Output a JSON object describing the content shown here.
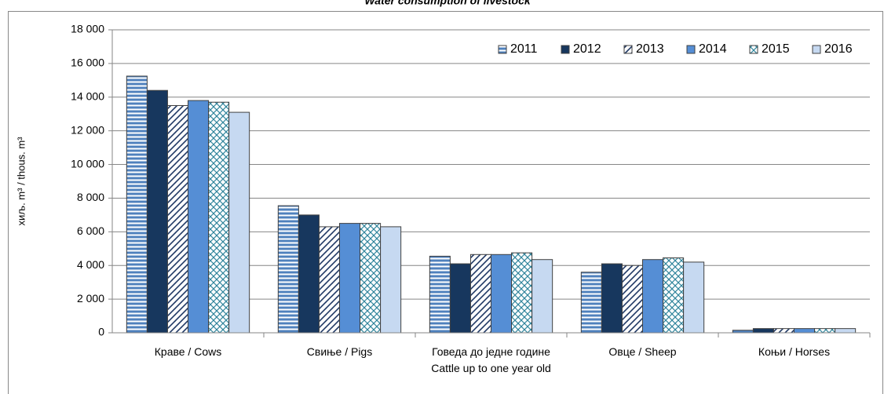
{
  "chart_data": {
    "type": "bar",
    "title": "Water consumption of livestock",
    "y_label": "хиљ. m³ / thous. m³",
    "categories": [
      "Краве / Cows",
      "Свиње / Pigs",
      "Говеда до једне године\nCattle up to one year old",
      "Овце / Sheep",
      "Коњи / Horses"
    ],
    "series": [
      {
        "name": "2011",
        "color": "#4f81bd",
        "pattern": "horizontal",
        "values": [
          15250,
          7550,
          4550,
          3600,
          150
        ]
      },
      {
        "name": "2012",
        "color": "#17375e",
        "pattern": "solid",
        "values": [
          14400,
          7000,
          4100,
          4100,
          250
        ]
      },
      {
        "name": "2013",
        "color": "#1f3864",
        "pattern": "diagonal",
        "values": [
          13500,
          6300,
          4650,
          4000,
          250
        ]
      },
      {
        "name": "2014",
        "color": "#558ed5",
        "pattern": "solid",
        "values": [
          13800,
          6500,
          4650,
          4350,
          250
        ]
      },
      {
        "name": "2015",
        "color": "#31859c",
        "pattern": "cross",
        "values": [
          13700,
          6500,
          4750,
          4450,
          250
        ]
      },
      {
        "name": "2016",
        "color": "#c6d9f1",
        "pattern": "solid",
        "values": [
          13100,
          6300,
          4350,
          4200,
          250
        ]
      }
    ],
    "ylim": [
      0,
      18000
    ],
    "yticks": [
      0,
      {
        "value": 2000,
        "label": "2 000"
      },
      {
        "value": 4000,
        "label": "4 000"
      },
      {
        "value": 6000,
        "label": "6 000"
      },
      {
        "value": 8000,
        "label": "8 000"
      },
      {
        "value": 10000,
        "label": "10 000"
      },
      {
        "value": 12000,
        "label": "12 000"
      },
      {
        "value": 14000,
        "label": "14 000"
      },
      {
        "value": 16000,
        "label": "16 000"
      },
      {
        "value": 18000,
        "label": "18 000"
      }
    ],
    "grid": true,
    "legend": "upper right"
  }
}
